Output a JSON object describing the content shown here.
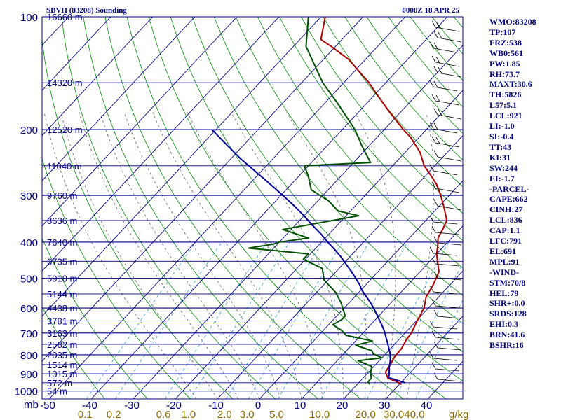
{
  "header": {
    "title": "SBVH (83208) Sounding",
    "time": "0000Z 18 APR 25"
  },
  "indices": [
    "WMO:83208",
    "TP:107",
    "FRZ:538",
    "WB0:561",
    "PW:1.85",
    "RH:73.7",
    "MAXT:30.6",
    "TH:5826",
    "L57:5.1",
    "LCL:921",
    "LI:-1.0",
    "SI:-0.4",
    "TT:43",
    "KI:31",
    "SW:244",
    "EI:-1.7",
    "-PARCEL-",
    "CAPE:662",
    "CINH:27",
    "LCL:836",
    "CAP:1.1",
    "LFC:791",
    "EL:691",
    "MPL:91",
    "-WIND-",
    "STM:70/8",
    "HEL:79",
    "SHR+:0.0",
    "SRDS:128",
    "EHI:0.3",
    "BRN:41.6",
    "BSHR:16"
  ],
  "colors": {
    "isobar": "#00008b",
    "temperature": "#b00000",
    "dewpoint": "#005000",
    "parcel": "#00009f",
    "dry_adiabat": "#009000",
    "moist_adiabat": "#606060",
    "mixing_ratio": "#2a9ad8",
    "label": "#00007f",
    "mix_label": "#8a6a00"
  },
  "chart_data": {
    "type": "line",
    "title": "SBVH (83208) Sounding",
    "subtitle": "0000Z 18 APR 25",
    "y_axis": {
      "unit": "mb",
      "ticks": [
        100,
        200,
        300,
        400,
        500,
        600,
        700,
        800,
        900,
        1000
      ],
      "scale": "log",
      "range": [
        1050,
        100
      ]
    },
    "x_axis": {
      "ticks": [
        -50,
        -40,
        -30,
        -20,
        -10,
        0,
        10,
        20,
        30,
        40
      ]
    },
    "mixing_ratio_axis": {
      "unit": "g/kg",
      "ticks": [
        "0.1",
        "0.2",
        "0.6",
        "1.0",
        "2.0",
        "3.0",
        "5.0",
        "10.0",
        "20.0",
        "30.0",
        "40.0"
      ]
    },
    "height_labels": [
      {
        "p": 100,
        "label": "16660 m"
      },
      {
        "p": 150,
        "label": "14320 m"
      },
      {
        "p": 200,
        "label": "12520 m"
      },
      {
        "p": 250,
        "label": "11040 m"
      },
      {
        "p": 300,
        "label": "9760 m"
      },
      {
        "p": 350,
        "label": "8636 m"
      },
      {
        "p": 400,
        "label": "7640 m"
      },
      {
        "p": 450,
        "label": "6735 m"
      },
      {
        "p": 500,
        "label": "5910 m"
      },
      {
        "p": 550,
        "label": "5144 m"
      },
      {
        "p": 600,
        "label": "4438 m"
      },
      {
        "p": 650,
        "label": "3781 m"
      },
      {
        "p": 700,
        "label": "3163 m"
      },
      {
        "p": 750,
        "label": "2582 m"
      },
      {
        "p": 800,
        "label": "2035 m"
      },
      {
        "p": 850,
        "label": "1514 m"
      },
      {
        "p": 900,
        "label": "1015 m"
      },
      {
        "p": 950,
        "label": "572 m"
      },
      {
        "p": 1000,
        "label": "54 m"
      }
    ],
    "series": [
      {
        "name": "",
        "role": "temperature",
        "points": [
          [
            30.5,
            960
          ],
          [
            29,
            945
          ],
          [
            26,
            925
          ],
          [
            24,
            890
          ],
          [
            23.5,
            850
          ],
          [
            22.8,
            810
          ],
          [
            22.6,
            770
          ],
          [
            21.8,
            730
          ],
          [
            21.5,
            700
          ],
          [
            20.2,
            650
          ],
          [
            19,
            600
          ],
          [
            17,
            560
          ],
          [
            16,
            520
          ],
          [
            14.5,
            480
          ],
          [
            11.8,
            450
          ],
          [
            10,
            430
          ],
          [
            8.5,
            410
          ],
          [
            6.8,
            390
          ],
          [
            6,
            370
          ],
          [
            5,
            350
          ],
          [
            1,
            320
          ],
          [
            -2,
            300
          ],
          [
            -5.5,
            280
          ],
          [
            -10,
            260
          ],
          [
            -12.5,
            250
          ],
          [
            -16.5,
            230
          ],
          [
            -22,
            210
          ],
          [
            -25.5,
            200
          ],
          [
            -32.5,
            180
          ],
          [
            -40,
            160
          ],
          [
            -44,
            150
          ],
          [
            -54,
            130
          ],
          [
            -61,
            120
          ],
          [
            -65,
            115
          ],
          [
            -69,
            100
          ]
        ]
      },
      {
        "name": "",
        "role": "dewpoint",
        "points": [
          [
            23,
            960
          ],
          [
            22,
            945
          ],
          [
            22,
            925
          ],
          [
            20.5,
            890
          ],
          [
            19.5,
            860
          ],
          [
            15,
            830
          ],
          [
            20,
            815
          ],
          [
            17,
            795
          ],
          [
            16,
            780
          ],
          [
            11,
            755
          ],
          [
            14,
            735
          ],
          [
            6.5,
            710
          ],
          [
            4.5,
            690
          ],
          [
            1,
            665
          ],
          [
            2,
            645
          ],
          [
            2,
            630
          ],
          [
            -2,
            580
          ],
          [
            -5.5,
            545
          ],
          [
            -11,
            505
          ],
          [
            -14,
            470
          ],
          [
            -20.5,
            445
          ],
          [
            -20.5,
            430
          ],
          [
            -36,
            415
          ],
          [
            -31,
            405
          ],
          [
            -30,
            400
          ],
          [
            -24,
            390
          ],
          [
            -32,
            370
          ],
          [
            -17,
            340
          ],
          [
            -23,
            330
          ],
          [
            -27.5,
            310
          ],
          [
            -34,
            290
          ],
          [
            -38,
            265
          ],
          [
            -41,
            250
          ],
          [
            -26,
            245
          ],
          [
            -32,
            220
          ],
          [
            -37,
            200
          ],
          [
            -47,
            170
          ],
          [
            -55,
            150
          ],
          [
            -67,
            120
          ],
          [
            -73,
            100
          ]
        ]
      },
      {
        "name": "",
        "role": "parcel",
        "points": [
          [
            31,
            950
          ],
          [
            28.5,
            935
          ],
          [
            26,
            921
          ],
          [
            25.3,
            900
          ],
          [
            24.5,
            880
          ],
          [
            23.7,
            860
          ],
          [
            23,
            840
          ],
          [
            22.2,
            820
          ],
          [
            21.3,
            800
          ],
          [
            20.2,
            780
          ],
          [
            19,
            760
          ],
          [
            17.8,
            740
          ],
          [
            16.5,
            720
          ],
          [
            15.2,
            700
          ],
          [
            13.8,
            680
          ],
          [
            12.2,
            660
          ],
          [
            10.5,
            640
          ],
          [
            8.8,
            620
          ],
          [
            7,
            600
          ],
          [
            5,
            580
          ],
          [
            2.8,
            560
          ],
          [
            0.5,
            540
          ],
          [
            -1.5,
            520
          ],
          [
            -3.8,
            500
          ],
          [
            -6.3,
            480
          ],
          [
            -9,
            460
          ],
          [
            -11.8,
            440
          ],
          [
            -15,
            420
          ],
          [
            -18.5,
            400
          ],
          [
            -22,
            380
          ],
          [
            -26,
            360
          ],
          [
            -30,
            340
          ],
          [
            -34.5,
            320
          ],
          [
            -39.5,
            300
          ],
          [
            -45,
            280
          ],
          [
            -51,
            260
          ],
          [
            -57.5,
            240
          ],
          [
            -64,
            220
          ],
          [
            -71,
            200
          ]
        ]
      }
    ]
  }
}
